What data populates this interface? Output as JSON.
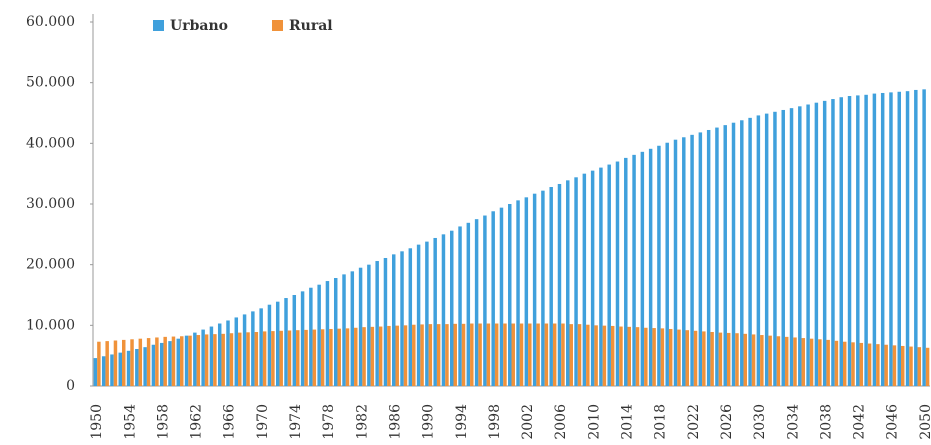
{
  "chart_data": {
    "type": "bar",
    "categories": [
      "1950",
      null,
      null,
      null,
      "1954",
      null,
      null,
      null,
      "1958",
      null,
      null,
      null,
      "1962",
      null,
      null,
      null,
      "1966",
      null,
      null,
      null,
      "1970",
      null,
      null,
      null,
      "1974",
      null,
      null,
      null,
      "1978",
      null,
      null,
      null,
      "1982",
      null,
      null,
      null,
      "1986",
      null,
      null,
      null,
      "1990",
      null,
      null,
      null,
      "1994",
      null,
      null,
      null,
      "1998",
      null,
      null,
      null,
      "2002",
      null,
      null,
      null,
      "2006",
      null,
      null,
      null,
      "2010",
      null,
      null,
      null,
      "2014",
      null,
      null,
      null,
      "2018",
      null,
      null,
      null,
      "2022",
      null,
      null,
      null,
      "2026",
      null,
      null,
      null,
      "2030",
      null,
      null,
      null,
      "2034",
      null,
      null,
      null,
      "2038",
      null,
      null,
      null,
      "2042",
      null,
      null,
      null,
      "2046",
      null,
      null,
      null,
      "2050"
    ],
    "series": [
      {
        "name": "Urbano",
        "color": "#3fa0dc",
        "values": [
          4600,
          4900,
          5200,
          5500,
          5800,
          6100,
          6400,
          6800,
          7100,
          7400,
          7800,
          8300,
          8800,
          9300,
          9800,
          10300,
          10800,
          11300,
          11800,
          12300,
          12800,
          13400,
          13900,
          14500,
          15000,
          15600,
          16200,
          16700,
          17300,
          17800,
          18400,
          18900,
          19500,
          20000,
          20600,
          21100,
          21700,
          22200,
          22700,
          23300,
          23800,
          24400,
          25000,
          25600,
          26300,
          26900,
          27500,
          28100,
          28800,
          29400,
          30000,
          30600,
          31100,
          31700,
          32200,
          32800,
          33300,
          33900,
          34400,
          35000,
          35500,
          36000,
          36500,
          37000,
          37600,
          38100,
          38600,
          39100,
          39600,
          40100,
          40600,
          41000,
          41400,
          41800,
          42200,
          42600,
          43000,
          43400,
          43800,
          44200,
          44600,
          44900,
          45200,
          45500,
          45800,
          46100,
          46400,
          46700,
          47000,
          47300,
          47600,
          47800,
          47900,
          48000,
          48200,
          48300,
          48400,
          48500,
          48600,
          48800,
          48900
        ]
      },
      {
        "name": "Rural",
        "color": "#f0923a",
        "values": [
          7300,
          7400,
          7500,
          7600,
          7700,
          7800,
          7900,
          8000,
          8100,
          8150,
          8200,
          8300,
          8400,
          8500,
          8550,
          8600,
          8700,
          8800,
          8850,
          8900,
          9000,
          9050,
          9100,
          9150,
          9200,
          9250,
          9300,
          9350,
          9400,
          9450,
          9500,
          9600,
          9700,
          9750,
          9800,
          9900,
          9950,
          10000,
          10100,
          10150,
          10200,
          10200,
          10200,
          10250,
          10250,
          10300,
          10300,
          10300,
          10300,
          10300,
          10300,
          10300,
          10300,
          10300,
          10300,
          10300,
          10300,
          10200,
          10200,
          10100,
          10000,
          9950,
          9900,
          9800,
          9750,
          9700,
          9600,
          9550,
          9500,
          9400,
          9300,
          9200,
          9100,
          9000,
          8900,
          8800,
          8750,
          8700,
          8600,
          8500,
          8400,
          8300,
          8200,
          8100,
          8000,
          7900,
          7800,
          7700,
          7600,
          7450,
          7300,
          7200,
          7100,
          7000,
          6900,
          6800,
          6700,
          6600,
          6500,
          6400,
          6300
        ]
      }
    ],
    "ylim": [
      0,
      60000
    ],
    "yticks": [
      0,
      {
        "value": 10000,
        "label": "10.000"
      },
      {
        "value": 20000,
        "label": "20.000"
      },
      {
        "value": 30000,
        "label": "30.000"
      },
      {
        "value": 40000,
        "label": "40.000"
      },
      {
        "value": 50000,
        "label": "50.000"
      },
      {
        "value": 60000,
        "label": "60.000"
      }
    ],
    "grid": false
  }
}
